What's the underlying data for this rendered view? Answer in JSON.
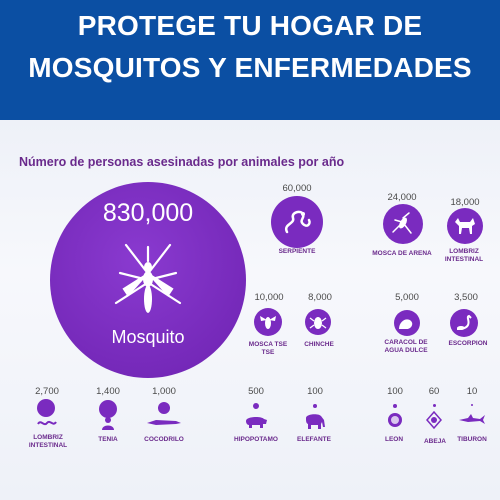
{
  "banner": {
    "line1": "PROTEGE TU HOGAR DE",
    "line2": "MOSQUITOS Y ENFERMEDADES"
  },
  "subtitle": "Número de personas asesinadas por animales por año",
  "colors": {
    "banner": "#0b4fa3",
    "circle": "#7a2bbf",
    "label": "#6a2a8c"
  },
  "animals": {
    "mosquito": {
      "value": "830,000",
      "label": "Mosquito",
      "icon": "mosquito-icon"
    },
    "serpiente": {
      "value": "60,000",
      "label": "SERPIENTE",
      "icon": "snake-icon"
    },
    "mosca_arena": {
      "value": "24,000",
      "label": "MOSCA DE ARENA",
      "icon": "sandfly-icon"
    },
    "lombriz_intestinal_1": {
      "value": "18,000",
      "label": "LOMBRIZ INTESTINAL",
      "icon": "dog-icon"
    },
    "mosca_tse": {
      "value": "10,000",
      "label": "MOSCA TSE TSE",
      "icon": "tsetse-fly-icon"
    },
    "chinche": {
      "value": "8,000",
      "label": "CHINCHE",
      "icon": "bug-icon"
    },
    "caracol": {
      "value": "5,000",
      "label": "CARACOL DE AGUA DULCE",
      "icon": "snail-icon"
    },
    "escorpion": {
      "value": "3,500",
      "label": "ESCORPION",
      "icon": "scorpion-icon"
    },
    "lombriz_intestinal_2": {
      "value": "2,700",
      "label": "LOMBRIZ INTESTINAL",
      "icon": "worm-icon"
    },
    "tenia": {
      "value": "1,400",
      "label": "TENIA",
      "icon": "person-icon"
    },
    "cocodrilo": {
      "value": "1,000",
      "label": "COCODRILO",
      "icon": "crocodile-icon"
    },
    "hipopotamo": {
      "value": "500",
      "label": "HIPOPOTAMO",
      "icon": "hippo-icon"
    },
    "elefante": {
      "value": "100",
      "label": "ELEFANTE",
      "icon": "elephant-icon"
    },
    "leon": {
      "value": "100",
      "label": "LEON",
      "icon": "lion-icon"
    },
    "abeja": {
      "value": "60",
      "label": "ABEJA",
      "icon": "bee-icon"
    },
    "tiburon": {
      "value": "10",
      "label": "TIBURON",
      "icon": "shark-icon"
    }
  }
}
